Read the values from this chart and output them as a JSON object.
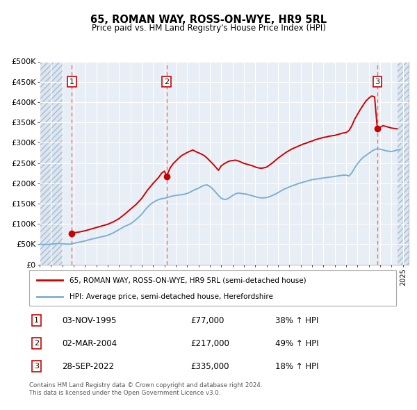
{
  "title": "65, ROMAN WAY, ROSS-ON-WYE, HR9 5RL",
  "subtitle": "Price paid vs. HM Land Registry's House Price Index (HPI)",
  "ylabel_ticks": [
    "£0",
    "£50K",
    "£100K",
    "£150K",
    "£200K",
    "£250K",
    "£300K",
    "£350K",
    "£400K",
    "£450K",
    "£500K"
  ],
  "ytick_values": [
    0,
    50000,
    100000,
    150000,
    200000,
    250000,
    300000,
    350000,
    400000,
    450000,
    500000
  ],
  "xlim": [
    1993.0,
    2025.5
  ],
  "ylim": [
    0,
    500000
  ],
  "transactions": [
    {
      "num": 1,
      "date_x": 1995.84,
      "price": 77000,
      "label": "03-NOV-1995",
      "price_str": "£77,000",
      "pct": "38% ↑ HPI"
    },
    {
      "num": 2,
      "date_x": 2004.17,
      "price": 217000,
      "label": "02-MAR-2004",
      "price_str": "£217,000",
      "pct": "49% ↑ HPI"
    },
    {
      "num": 3,
      "date_x": 2022.74,
      "price": 335000,
      "label": "28-SEP-2022",
      "price_str": "£335,000",
      "pct": "18% ↑ HPI"
    }
  ],
  "hpi_line_color": "#7bafd4",
  "price_line_color": "#cc0000",
  "marker_color": "#cc0000",
  "vline_color": "#e87070",
  "hatch_face_color": "#dce6f1",
  "grid_color": "#cccccc",
  "grid_bg_color": "#e8eef5",
  "legend_label_red": "65, ROMAN WAY, ROSS-ON-WYE, HR9 5RL (semi-detached house)",
  "legend_label_blue": "HPI: Average price, semi-detached house, Herefordshire",
  "footer1": "Contains HM Land Registry data © Crown copyright and database right 2024.",
  "footer2": "This data is licensed under the Open Government Licence v3.0.",
  "hpi_data": [
    [
      1993.0,
      50000
    ],
    [
      1993.25,
      49500
    ],
    [
      1993.5,
      49000
    ],
    [
      1993.75,
      49500
    ],
    [
      1994.0,
      50000
    ],
    [
      1994.25,
      50500
    ],
    [
      1994.5,
      51000
    ],
    [
      1994.75,
      51500
    ],
    [
      1995.0,
      51000
    ],
    [
      1995.25,
      50500
    ],
    [
      1995.5,
      50000
    ],
    [
      1995.75,
      50500
    ],
    [
      1996.0,
      52000
    ],
    [
      1996.25,
      53500
    ],
    [
      1996.5,
      55000
    ],
    [
      1996.75,
      56500
    ],
    [
      1997.0,
      58000
    ],
    [
      1997.25,
      60000
    ],
    [
      1997.5,
      62000
    ],
    [
      1997.75,
      63500
    ],
    [
      1998.0,
      65000
    ],
    [
      1998.25,
      67000
    ],
    [
      1998.5,
      68500
    ],
    [
      1998.75,
      70000
    ],
    [
      1999.0,
      72000
    ],
    [
      1999.25,
      75000
    ],
    [
      1999.5,
      78000
    ],
    [
      1999.75,
      82000
    ],
    [
      2000.0,
      86000
    ],
    [
      2000.25,
      90000
    ],
    [
      2000.5,
      94000
    ],
    [
      2000.75,
      97000
    ],
    [
      2001.0,
      100000
    ],
    [
      2001.25,
      105000
    ],
    [
      2001.5,
      111000
    ],
    [
      2001.75,
      117000
    ],
    [
      2002.0,
      124000
    ],
    [
      2002.25,
      133000
    ],
    [
      2002.5,
      141000
    ],
    [
      2002.75,
      148000
    ],
    [
      2003.0,
      153000
    ],
    [
      2003.25,
      157000
    ],
    [
      2003.5,
      160000
    ],
    [
      2003.75,
      162000
    ],
    [
      2004.0,
      163000
    ],
    [
      2004.25,
      165000
    ],
    [
      2004.5,
      167000
    ],
    [
      2004.75,
      169000
    ],
    [
      2005.0,
      170000
    ],
    [
      2005.25,
      171000
    ],
    [
      2005.5,
      172000
    ],
    [
      2005.75,
      173000
    ],
    [
      2006.0,
      175000
    ],
    [
      2006.25,
      178000
    ],
    [
      2006.5,
      182000
    ],
    [
      2006.75,
      185000
    ],
    [
      2007.0,
      188000
    ],
    [
      2007.25,
      192000
    ],
    [
      2007.5,
      195000
    ],
    [
      2007.75,
      196000
    ],
    [
      2008.0,
      192000
    ],
    [
      2008.25,
      186000
    ],
    [
      2008.5,
      178000
    ],
    [
      2008.75,
      170000
    ],
    [
      2009.0,
      163000
    ],
    [
      2009.25,
      160000
    ],
    [
      2009.5,
      161000
    ],
    [
      2009.75,
      165000
    ],
    [
      2010.0,
      170000
    ],
    [
      2010.25,
      174000
    ],
    [
      2010.5,
      176000
    ],
    [
      2010.75,
      175000
    ],
    [
      2011.0,
      174000
    ],
    [
      2011.25,
      173000
    ],
    [
      2011.5,
      171000
    ],
    [
      2011.75,
      169000
    ],
    [
      2012.0,
      167000
    ],
    [
      2012.25,
      165000
    ],
    [
      2012.5,
      164000
    ],
    [
      2012.75,
      164000
    ],
    [
      2013.0,
      165000
    ],
    [
      2013.25,
      167000
    ],
    [
      2013.5,
      170000
    ],
    [
      2013.75,
      173000
    ],
    [
      2014.0,
      177000
    ],
    [
      2014.25,
      181000
    ],
    [
      2014.5,
      185000
    ],
    [
      2014.75,
      188000
    ],
    [
      2015.0,
      191000
    ],
    [
      2015.25,
      194000
    ],
    [
      2015.5,
      196000
    ],
    [
      2015.75,
      199000
    ],
    [
      2016.0,
      201000
    ],
    [
      2016.25,
      203000
    ],
    [
      2016.5,
      205000
    ],
    [
      2016.75,
      207000
    ],
    [
      2017.0,
      209000
    ],
    [
      2017.25,
      210000
    ],
    [
      2017.5,
      211000
    ],
    [
      2017.75,
      212000
    ],
    [
      2018.0,
      213000
    ],
    [
      2018.25,
      214000
    ],
    [
      2018.5,
      215000
    ],
    [
      2018.75,
      216000
    ],
    [
      2019.0,
      217000
    ],
    [
      2019.25,
      218000
    ],
    [
      2019.5,
      219000
    ],
    [
      2019.75,
      220000
    ],
    [
      2020.0,
      220000
    ],
    [
      2020.25,
      218000
    ],
    [
      2020.5,
      226000
    ],
    [
      2020.75,
      238000
    ],
    [
      2021.0,
      248000
    ],
    [
      2021.25,
      257000
    ],
    [
      2021.5,
      264000
    ],
    [
      2021.75,
      269000
    ],
    [
      2022.0,
      274000
    ],
    [
      2022.25,
      279000
    ],
    [
      2022.5,
      283000
    ],
    [
      2022.75,
      285000
    ],
    [
      2023.0,
      284000
    ],
    [
      2023.25,
      282000
    ],
    [
      2023.5,
      280000
    ],
    [
      2023.75,
      279000
    ],
    [
      2024.0,
      278000
    ],
    [
      2024.25,
      280000
    ],
    [
      2024.5,
      282000
    ],
    [
      2024.75,
      283000
    ]
  ],
  "price_data": [
    [
      1995.84,
      77000
    ],
    [
      1996.0,
      78000
    ],
    [
      1996.5,
      80000
    ],
    [
      1997.0,
      83000
    ],
    [
      1997.5,
      87000
    ],
    [
      1998.0,
      91000
    ],
    [
      1998.5,
      95000
    ],
    [
      1999.0,
      99000
    ],
    [
      1999.5,
      105000
    ],
    [
      2000.0,
      113000
    ],
    [
      2000.5,
      124000
    ],
    [
      2001.0,
      136000
    ],
    [
      2001.5,
      148000
    ],
    [
      2002.0,
      163000
    ],
    [
      2002.5,
      183000
    ],
    [
      2003.0,
      200000
    ],
    [
      2003.5,
      215000
    ],
    [
      2003.75,
      225000
    ],
    [
      2004.0,
      230000
    ],
    [
      2004.17,
      217000
    ],
    [
      2004.5,
      238000
    ],
    [
      2004.75,
      248000
    ],
    [
      2005.0,
      255000
    ],
    [
      2005.25,
      262000
    ],
    [
      2005.5,
      268000
    ],
    [
      2005.75,
      272000
    ],
    [
      2006.0,
      276000
    ],
    [
      2006.25,
      279000
    ],
    [
      2006.5,
      282000
    ],
    [
      2006.75,
      278000
    ],
    [
      2007.0,
      275000
    ],
    [
      2007.25,
      272000
    ],
    [
      2007.5,
      268000
    ],
    [
      2007.75,
      262000
    ],
    [
      2008.0,
      255000
    ],
    [
      2008.25,
      248000
    ],
    [
      2008.5,
      240000
    ],
    [
      2008.75,
      232000
    ],
    [
      2009.0,
      243000
    ],
    [
      2009.25,
      248000
    ],
    [
      2009.5,
      252000
    ],
    [
      2009.75,
      255000
    ],
    [
      2010.0,
      256000
    ],
    [
      2010.25,
      257000
    ],
    [
      2010.5,
      255000
    ],
    [
      2010.75,
      252000
    ],
    [
      2011.0,
      249000
    ],
    [
      2011.25,
      247000
    ],
    [
      2011.5,
      245000
    ],
    [
      2011.75,
      243000
    ],
    [
      2012.0,
      240000
    ],
    [
      2012.25,
      238000
    ],
    [
      2012.5,
      237000
    ],
    [
      2012.75,
      238000
    ],
    [
      2013.0,
      240000
    ],
    [
      2013.25,
      245000
    ],
    [
      2013.5,
      250000
    ],
    [
      2013.75,
      256000
    ],
    [
      2014.0,
      262000
    ],
    [
      2014.25,
      267000
    ],
    [
      2014.5,
      272000
    ],
    [
      2014.75,
      277000
    ],
    [
      2015.0,
      281000
    ],
    [
      2015.25,
      285000
    ],
    [
      2015.5,
      288000
    ],
    [
      2015.75,
      291000
    ],
    [
      2016.0,
      294000
    ],
    [
      2016.25,
      297000
    ],
    [
      2016.5,
      299000
    ],
    [
      2016.75,
      302000
    ],
    [
      2017.0,
      304000
    ],
    [
      2017.25,
      307000
    ],
    [
      2017.5,
      309000
    ],
    [
      2017.75,
      311000
    ],
    [
      2018.0,
      313000
    ],
    [
      2018.25,
      314000
    ],
    [
      2018.5,
      316000
    ],
    [
      2018.75,
      317000
    ],
    [
      2019.0,
      318000
    ],
    [
      2019.25,
      320000
    ],
    [
      2019.5,
      322000
    ],
    [
      2019.75,
      324000
    ],
    [
      2020.0,
      325000
    ],
    [
      2020.25,
      330000
    ],
    [
      2020.5,
      342000
    ],
    [
      2020.75,
      358000
    ],
    [
      2021.0,
      370000
    ],
    [
      2021.25,
      382000
    ],
    [
      2021.5,
      393000
    ],
    [
      2021.75,
      403000
    ],
    [
      2022.0,
      410000
    ],
    [
      2022.25,
      415000
    ],
    [
      2022.5,
      413000
    ],
    [
      2022.74,
      335000
    ],
    [
      2023.0,
      338000
    ],
    [
      2023.25,
      342000
    ],
    [
      2023.5,
      340000
    ],
    [
      2023.75,
      338000
    ],
    [
      2024.0,
      336000
    ],
    [
      2024.25,
      335000
    ],
    [
      2024.5,
      334000
    ]
  ]
}
